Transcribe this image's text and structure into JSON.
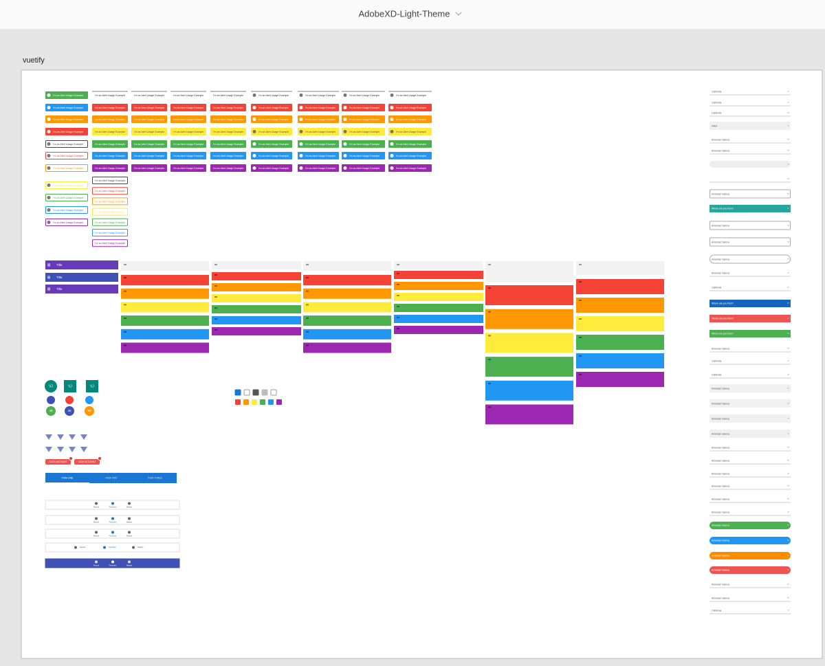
{
  "header": {
    "title": "AdobeXD-Light-Theme"
  },
  "artboard": {
    "label": "vuetify"
  },
  "alerts": {
    "text": "I'm an Alert Usage Example"
  },
  "toolbars": {
    "title": "Title"
  },
  "avatars": {
    "initials": "VJ",
    "numbers": [
      "48",
      "36",
      "62"
    ]
  },
  "buttons": [
    "CLICK ACCOUNT",
    "LOCK ACCOUNT"
  ],
  "tabs": [
    "ITEM ONE",
    "ITEM TWO",
    "ITEM THREE"
  ],
  "bottom_nav": [
    "Recent",
    "Favorites",
    "Nearby"
  ],
  "selects": {
    "california": "California",
    "filled": "Filled",
    "samoa": "American Samoa",
    "question": "Where are you from?"
  }
}
